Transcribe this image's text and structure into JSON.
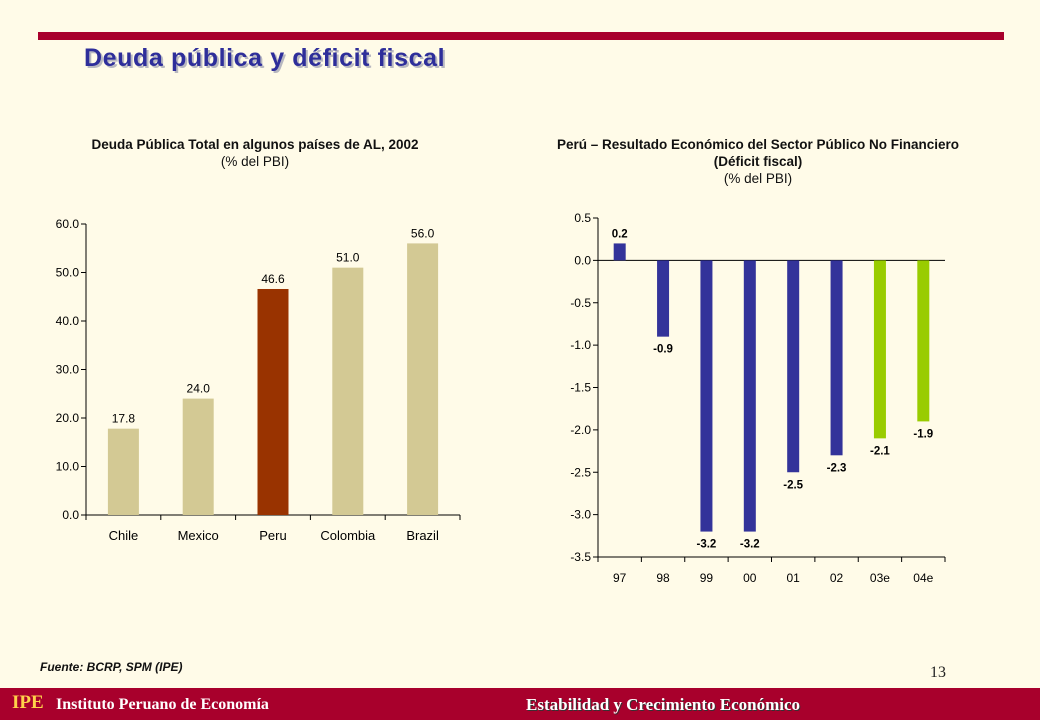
{
  "slide": {
    "title": "Deuda pública y déficit fiscal",
    "source": "Fuente: BCRP, SPM (IPE)",
    "page_number": "13",
    "footer_logo": "IPE",
    "footer_org": "Instituto Peruano de Economía",
    "footer_right": "Estabilidad y Crecimiento Económico",
    "colors": {
      "accent": "#A8002C",
      "title": "#2E2E9A",
      "background": "#FFFBE8"
    }
  },
  "chart_data": [
    {
      "type": "bar",
      "title": "Deuda Pública Total en algunos países de AL, 2002",
      "subtitle": "(% del PBI)",
      "categories": [
        "Chile",
        "Mexico",
        "Peru",
        "Colombia",
        "Brazil"
      ],
      "values": [
        17.8,
        24.0,
        46.6,
        51.0,
        56.0
      ],
      "value_labels": [
        "17.8",
        "24.0",
        "46.6",
        "51.0",
        "56.0"
      ],
      "colors": [
        "#D3C994",
        "#D3C994",
        "#993300",
        "#D3C994",
        "#D3C994"
      ],
      "ylim": [
        0,
        60
      ],
      "yticks": [
        0,
        10,
        20,
        30,
        40,
        50,
        60
      ],
      "ytick_labels": [
        "0.0",
        "10.0",
        "20.0",
        "30.0",
        "40.0",
        "50.0",
        "60.0"
      ],
      "grid": false
    },
    {
      "type": "bar",
      "title": "Perú – Resultado Económico del Sector Público No Financiero (Déficit fiscal)",
      "subtitle": "(% del PBI)",
      "categories": [
        "97",
        "98",
        "99",
        "00",
        "01",
        "02",
        "03e",
        "04e"
      ],
      "values": [
        0.2,
        -0.9,
        -3.2,
        -3.2,
        -2.5,
        -2.3,
        -2.1,
        -1.9
      ],
      "value_labels": [
        "0.2",
        "-0.9",
        "-3.2",
        "-3.2",
        "-2.5",
        "-2.3",
        "-2.1",
        "-1.9"
      ],
      "colors": [
        "#33339A",
        "#33339A",
        "#33339A",
        "#33339A",
        "#33339A",
        "#33339A",
        "#99CC00",
        "#99CC00"
      ],
      "ylim": [
        -3.5,
        0.5
      ],
      "yticks": [
        -3.5,
        -3.0,
        -2.5,
        -2.0,
        -1.5,
        -1.0,
        -0.5,
        0.0,
        0.5
      ],
      "ytick_labels": [
        "-3.5",
        "-3.0",
        "-2.5",
        "-2.0",
        "-1.5",
        "-1.0",
        "-0.5",
        "0.0",
        "0.5"
      ],
      "grid": false
    }
  ]
}
